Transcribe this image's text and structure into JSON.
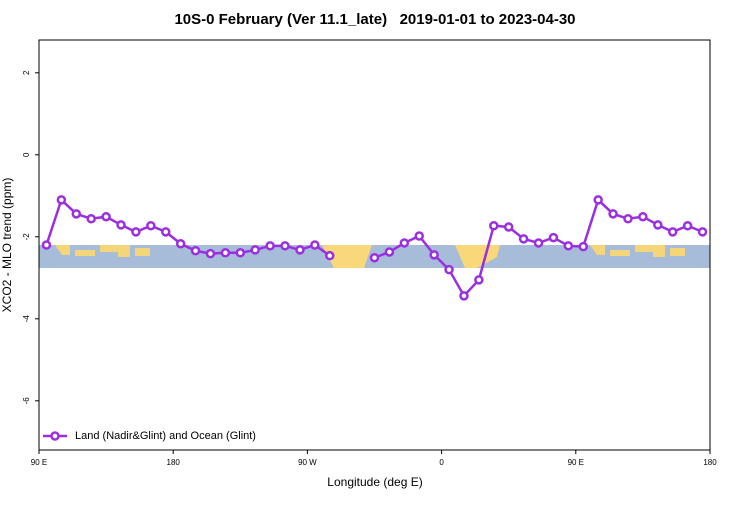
{
  "chart_data": {
    "type": "line",
    "title": "10S-0 February (Ver 11.1_late)   2019-01-01 to 2023-04-30",
    "x_label": "Longitude (deg E)",
    "y_label": "XCO2 - MLO trend (ppm)",
    "x": [
      95,
      105,
      115,
      125,
      135,
      145,
      155,
      165,
      175,
      185,
      195,
      205,
      215,
      225,
      235,
      245,
      255,
      265,
      275,
      285,
      295,
      305,
      315,
      325,
      335,
      345,
      355,
      365,
      375,
      385,
      395,
      405,
      415,
      425,
      435,
      445,
      455,
      465,
      475,
      485,
      495,
      505,
      515,
      525,
      535
    ],
    "series": [
      {
        "name": "Land (Nadir&Glint) and Ocean (Glint)",
        "color": "#9b2fe0",
        "values": [
          -2.2,
          -1.1,
          -1.44,
          -1.56,
          -1.51,
          -1.71,
          -1.88,
          -1.73,
          -1.88,
          -2.17,
          -2.34,
          -2.41,
          -2.39,
          -2.39,
          -2.32,
          -2.22,
          -2.22,
          -2.32,
          -2.2,
          -2.46,
          null,
          null,
          -2.51,
          -2.37,
          -2.15,
          -1.98,
          -2.44,
          -2.8,
          -3.44,
          -3.05,
          -1.73,
          -1.76,
          -2.05,
          -2.15,
          -2.02,
          -2.22,
          -2.24,
          -1.1,
          -1.44,
          -1.56,
          -1.51,
          -1.71,
          -1.88,
          -1.73,
          -1.88
        ]
      }
    ],
    "xlim": [
      90,
      540
    ],
    "ylim": [
      -7.2,
      2.8
    ],
    "xticks": [
      {
        "value": 90,
        "label": "90 E"
      },
      {
        "value": 180,
        "label": "180"
      },
      {
        "value": 270,
        "label": "90 W"
      },
      {
        "value": 360,
        "label": "0"
      },
      {
        "value": 450,
        "label": "90 E"
      },
      {
        "value": 540,
        "label": "180"
      }
    ],
    "yticks": [
      2,
      0,
      -2,
      -4,
      -6
    ],
    "legend": "lower left"
  }
}
